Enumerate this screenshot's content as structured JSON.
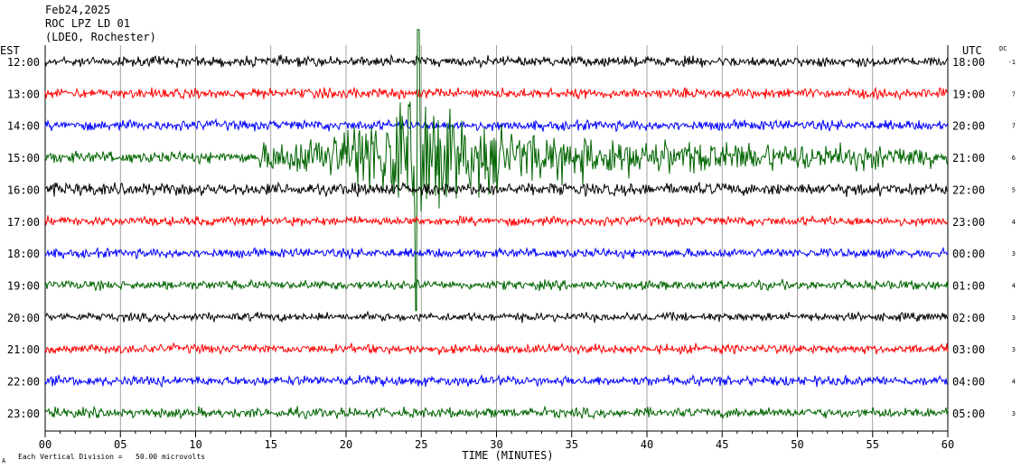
{
  "header": {
    "date": "Feb24,2025",
    "station": "ROC LPZ LD 01",
    "network": "(LDEO, Rochester)"
  },
  "footer": {
    "scale_note": "Each Vertical Division =   50.00 microvolts",
    "corner_mark": "A"
  },
  "chart_data": {
    "type": "line",
    "subtype": "helicorder",
    "xlabel": "TIME (MINUTES)",
    "x_ticks": [
      "00",
      "05",
      "10",
      "15",
      "20",
      "25",
      "30",
      "35",
      "40",
      "45",
      "50",
      "55",
      "60"
    ],
    "xlim": [
      0,
      60
    ],
    "left_axis_label": "EST",
    "right_axis_label": "UTC",
    "dc_label": "DC",
    "grid": "vertical lines every 5 minutes",
    "trace_colors": [
      "#000000",
      "#ff0000",
      "#0000ff",
      "#006400"
    ],
    "rows": [
      {
        "est": "12:00",
        "utc": "18:00",
        "dc": "-1",
        "color": "#000000",
        "amp": 2.6
      },
      {
        "est": "13:00",
        "utc": "19:00",
        "dc": "7",
        "color": "#ff0000",
        "amp": 2.6
      },
      {
        "est": "14:00",
        "utc": "20:00",
        "dc": "7",
        "color": "#0000ff",
        "amp": 2.6
      },
      {
        "est": "15:00",
        "utc": "21:00",
        "dc": "6",
        "color": "#006400",
        "amp": 3.0
      },
      {
        "est": "16:00",
        "utc": "22:00",
        "dc": "5",
        "color": "#000000",
        "amp": 3.2
      },
      {
        "est": "17:00",
        "utc": "23:00",
        "dc": "4",
        "color": "#ff0000",
        "amp": 2.4
      },
      {
        "est": "18:00",
        "utc": "00:00",
        "dc": "3",
        "color": "#0000ff",
        "amp": 2.4
      },
      {
        "est": "19:00",
        "utc": "01:00",
        "dc": "4",
        "color": "#006400",
        "amp": 2.4
      },
      {
        "est": "20:00",
        "utc": "02:00",
        "dc": "3",
        "color": "#000000",
        "amp": 2.2
      },
      {
        "est": "21:00",
        "utc": "03:00",
        "dc": "3",
        "color": "#ff0000",
        "amp": 2.4
      },
      {
        "est": "22:00",
        "utc": "04:00",
        "dc": "4",
        "color": "#0000ff",
        "amp": 2.6
      },
      {
        "est": "23:00",
        "utc": "05:00",
        "dc": "3",
        "color": "#006400",
        "amp": 2.6
      }
    ],
    "event": {
      "row_est": "15:00",
      "onset_minute": 14.2,
      "peak_minute": 24.8,
      "coda_end_minute": 60,
      "peak_up_divisions": 4.0,
      "peak_down_divisions": 4.8
    }
  }
}
